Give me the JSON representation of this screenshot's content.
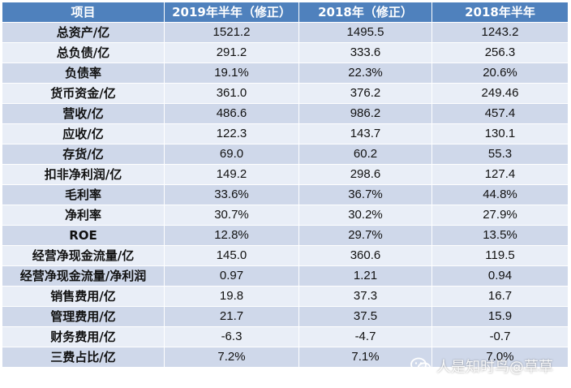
{
  "table": {
    "headers": [
      "项目",
      "2019年半年（修正）",
      "2018年（修正）",
      "2018年半年"
    ],
    "rows": [
      {
        "label": "总资产/亿",
        "v1": "1521.2",
        "v2": "1495.5",
        "v3": "1243.2"
      },
      {
        "label": "总负债/亿",
        "v1": "291.2",
        "v2": "333.6",
        "v3": "256.3"
      },
      {
        "label": "负债率",
        "v1": "19.1%",
        "v2": "22.3%",
        "v3": "20.6%"
      },
      {
        "label": "货币资金/亿",
        "v1": "361.0",
        "v2": "376.2",
        "v3": "249.46"
      },
      {
        "label": "营收/亿",
        "v1": "486.6",
        "v2": "986.2",
        "v3": "457.4"
      },
      {
        "label": "应收/亿",
        "v1": "122.3",
        "v2": "143.7",
        "v3": "130.1"
      },
      {
        "label": "存货/亿",
        "v1": "69.0",
        "v2": "60.2",
        "v3": "55.3"
      },
      {
        "label": "扣非净利润/亿",
        "v1": "149.2",
        "v2": "298.6",
        "v3": "127.4"
      },
      {
        "label": "毛利率",
        "v1": "33.6%",
        "v2": "36.7%",
        "v3": "44.8%"
      },
      {
        "label": "净利率",
        "v1": "30.7%",
        "v2": "30.2%",
        "v3": "27.9%"
      },
      {
        "label": "ROE",
        "v1": "12.8%",
        "v2": "29.7%",
        "v3": "13.5%"
      },
      {
        "label": "经营净现金流量/亿",
        "v1": "145.0",
        "v2": "360.6",
        "v3": "119.5"
      },
      {
        "label": "经营净现金流量/净利润",
        "v1": "0.97",
        "v2": "1.21",
        "v3": "0.94"
      },
      {
        "label": "销售费用/亿",
        "v1": "19.8",
        "v2": "37.3",
        "v3": "16.7"
      },
      {
        "label": "管理费用/亿",
        "v1": "21.7",
        "v2": "37.5",
        "v3": "15.9"
      },
      {
        "label": "财务费用/亿",
        "v1": "-6.3",
        "v2": "-4.7",
        "v3": "-0.7"
      },
      {
        "label": "三费占比/亿",
        "v1": "7.2%",
        "v2": "7.1%",
        "v3": "7.0%"
      }
    ]
  },
  "watermark": {
    "text": "人是知时鸟@草草",
    "icon": "wechat-icon"
  },
  "colors": {
    "header_bg": "#4f81bd",
    "row_odd": "#cfd8ea",
    "row_even": "#e9eef7"
  }
}
